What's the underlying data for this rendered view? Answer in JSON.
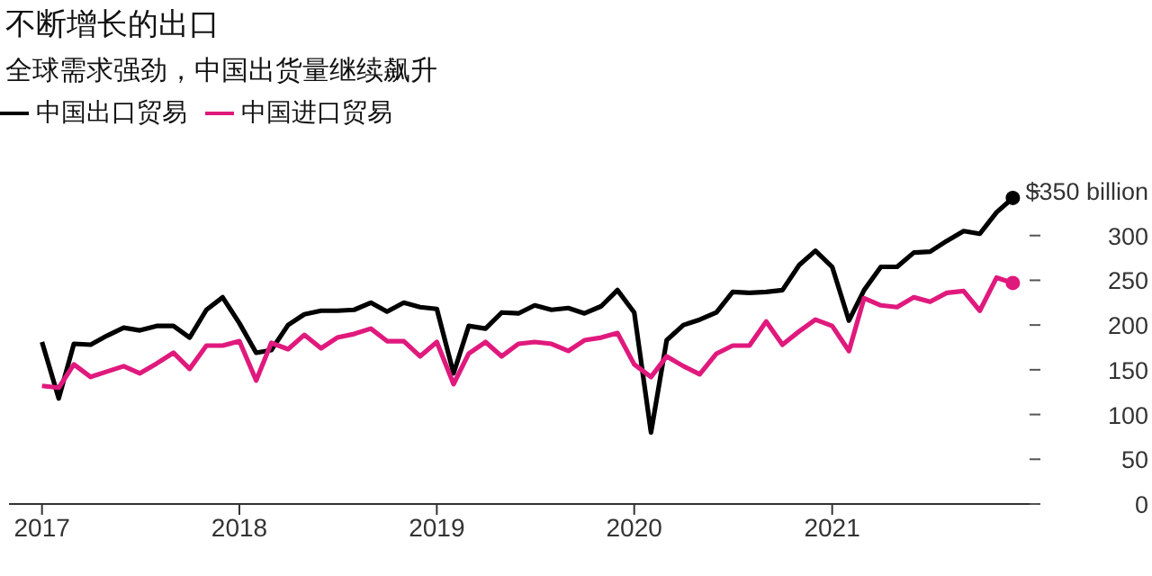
{
  "chart_data": {
    "type": "line",
    "title": "不断增长的出口",
    "subtitle": "全球需求强劲，中国出货量继续飙升",
    "x": [
      "2017-01",
      "2017-02",
      "2017-03",
      "2017-04",
      "2017-05",
      "2017-06",
      "2017-07",
      "2017-08",
      "2017-09",
      "2017-10",
      "2017-11",
      "2017-12",
      "2018-01",
      "2018-02",
      "2018-03",
      "2018-04",
      "2018-05",
      "2018-06",
      "2018-07",
      "2018-08",
      "2018-09",
      "2018-10",
      "2018-11",
      "2018-12",
      "2019-01",
      "2019-02",
      "2019-03",
      "2019-04",
      "2019-05",
      "2019-06",
      "2019-07",
      "2019-08",
      "2019-09",
      "2019-10",
      "2019-11",
      "2019-12",
      "2020-01",
      "2020-02",
      "2020-03",
      "2020-04",
      "2020-05",
      "2020-06",
      "2020-07",
      "2020-08",
      "2020-09",
      "2020-10",
      "2020-11",
      "2020-12",
      "2021-01",
      "2021-02",
      "2021-03",
      "2021-04",
      "2021-05",
      "2021-06",
      "2021-07",
      "2021-08",
      "2021-09",
      "2021-10",
      "2021-11",
      "2021-12"
    ],
    "series": [
      {
        "name": "中国出口贸易",
        "color": "#000000",
        "values": [
          181,
          118,
          179,
          178,
          188,
          197,
          194,
          199,
          199,
          186,
          217,
          231,
          202,
          169,
          172,
          200,
          212,
          216,
          216,
          217,
          225,
          215,
          225,
          220,
          218,
          146,
          199,
          196,
          214,
          213,
          222,
          217,
          219,
          213,
          221,
          239,
          214,
          80,
          183,
          200,
          206,
          214,
          237,
          236,
          237,
          239,
          267,
          283,
          265,
          205,
          239,
          265,
          265,
          281,
          282,
          294,
          305,
          302,
          326,
          342
        ]
      },
      {
        "name": "中国进口贸易",
        "color": "#e0197d",
        "values": [
          132,
          130,
          156,
          142,
          148,
          154,
          146,
          157,
          169,
          151,
          177,
          177,
          182,
          138,
          180,
          173,
          189,
          174,
          186,
          190,
          196,
          182,
          182,
          165,
          181,
          134,
          168,
          181,
          165,
          179,
          181,
          179,
          171,
          183,
          186,
          191,
          156,
          142,
          165,
          154,
          145,
          168,
          177,
          177,
          204,
          178,
          193,
          206,
          199,
          171,
          230,
          222,
          220,
          231,
          226,
          236,
          238,
          216,
          253,
          247
        ]
      }
    ],
    "xlim": [
      "2016-11",
      "2022-01"
    ],
    "xticks": [
      {
        "value": "2017-01",
        "label": "2017"
      },
      {
        "value": "2018-01",
        "label": "2018"
      },
      {
        "value": "2019-01",
        "label": "2019"
      },
      {
        "value": "2020-01",
        "label": "2020"
      },
      {
        "value": "2021-01",
        "label": "2021"
      }
    ],
    "ylim": [
      0,
      350
    ],
    "yticks": [
      0,
      50,
      100,
      150,
      200,
      250,
      300,
      {
        "value": 350,
        "label": "$350 billion"
      }
    ],
    "grid": false,
    "legend": "top left",
    "line_style": "solid"
  }
}
